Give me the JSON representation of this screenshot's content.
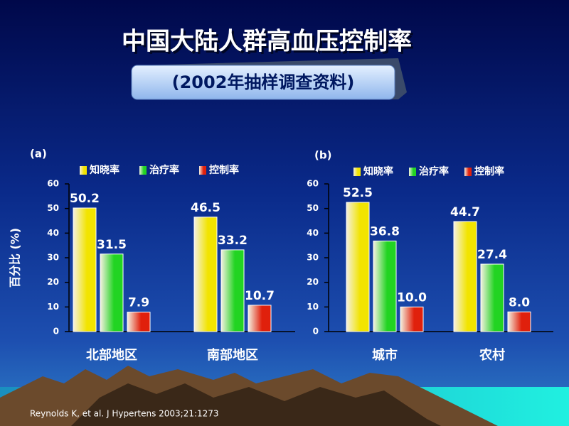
{
  "slide": {
    "title": "中国大陆人群高血压控制率",
    "subtitle": "(2002年抽样调查资料)",
    "source": "Reynolds K, et al.  J Hypertens  2003;21:1273"
  },
  "chart_data": [
    {
      "type": "bar",
      "label": "(a)",
      "ylabel": "百分比 (%)",
      "categories": [
        "北部地区",
        "南部地区"
      ],
      "series": [
        {
          "name": "知晓率",
          "color": "#f2e400",
          "values": [
            50.2,
            46.5
          ]
        },
        {
          "name": "治疗率",
          "color": "#22d422",
          "values": [
            31.5,
            33.2
          ]
        },
        {
          "name": "控制率",
          "color": "#e0200c",
          "values": [
            7.9,
            10.7
          ]
        }
      ],
      "ylim": [
        0,
        60
      ],
      "yticks": [
        0,
        10,
        20,
        30,
        40,
        50,
        60
      ]
    },
    {
      "type": "bar",
      "label": "(b)",
      "categories": [
        "城市",
        "农村"
      ],
      "series": [
        {
          "name": "知晓率",
          "color": "#f2e400",
          "values": [
            52.5,
            44.7
          ]
        },
        {
          "name": "治疗率",
          "color": "#22d422",
          "values": [
            36.8,
            27.4
          ]
        },
        {
          "name": "控制率",
          "color": "#e0200c",
          "values": [
            10,
            8
          ],
          "value_labels": [
            "10.0",
            "8.0"
          ]
        }
      ],
      "ylim": [
        0,
        60
      ],
      "yticks": [
        0,
        10,
        20,
        30,
        40,
        50,
        60
      ]
    }
  ]
}
